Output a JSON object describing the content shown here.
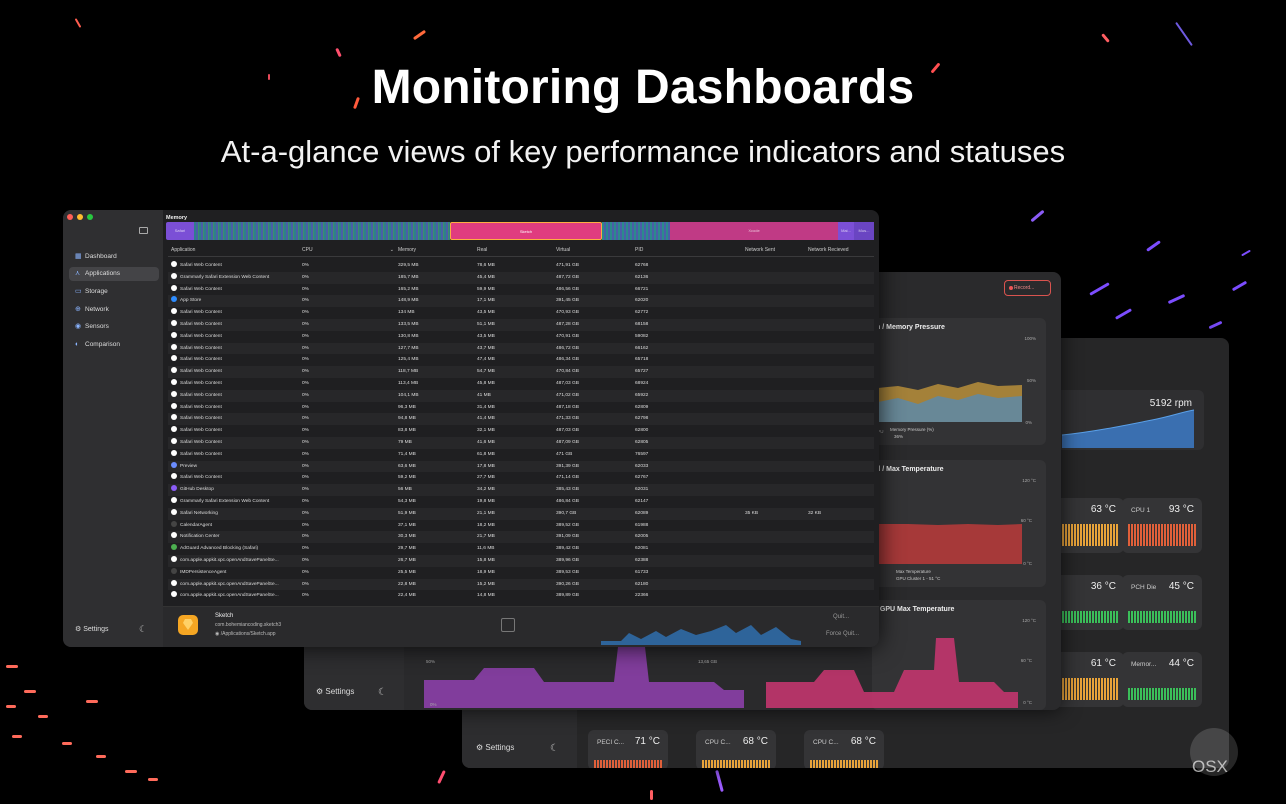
{
  "hero": {
    "title": "Monitoring Dashboards",
    "subtitle": "At-a-glance views of key performance indicators and statuses"
  },
  "colors": {
    "accent_pink": "#e83f7f",
    "accent_purple": "#8b3fd1",
    "accent_orange": "#ffae42",
    "fan_blue": "#3a6fb0"
  },
  "sidebar": {
    "items": [
      {
        "label": "Dashboard",
        "icon": "grid-icon"
      },
      {
        "label": "Applications",
        "icon": "apps-icon"
      },
      {
        "label": "Storage",
        "icon": "disk-icon"
      },
      {
        "label": "Network",
        "icon": "globe-icon"
      },
      {
        "label": "Sensors",
        "icon": "thermometer-icon"
      },
      {
        "label": "Comparison",
        "icon": "compare-icon"
      }
    ],
    "settings_label": "Settings"
  },
  "memory": {
    "label": "Memory",
    "segments": [
      {
        "label": "Safari",
        "color": "#7b4fd6"
      },
      {
        "label": "",
        "color": "#2f7f8c"
      },
      {
        "label": "Sketch",
        "color": "#e03c7f"
      },
      {
        "label": "",
        "color": "#2c8a8c"
      },
      {
        "label": "Xcode",
        "color": "#c03a85"
      },
      {
        "label": "Mai...",
        "color": "#7b4fd6"
      },
      {
        "label": "Mus...",
        "color": "#7b4fd6"
      }
    ]
  },
  "table": {
    "headers": [
      "Application",
      "CPU",
      "Memory",
      "Real",
      "Virtual",
      "PID",
      "Network Sent",
      "Network Recieved"
    ],
    "rows": [
      [
        "Safari Web Content",
        "0%",
        "329,5 MB",
        "78,6 MB",
        "471,91 GB",
        "62768",
        "",
        ""
      ],
      [
        "Grammarly Safari Extension Web Content",
        "0%",
        "185,7 MB",
        "45,4 MB",
        "487,72 GB",
        "62136",
        "",
        ""
      ],
      [
        "Safari Web Content",
        "0%",
        "165,2 MB",
        "59,9 MB",
        "486,56 GB",
        "66721",
        "",
        ""
      ],
      [
        "App Store",
        "0%",
        "148,9 MB",
        "17,1 MB",
        "391,45 GB",
        "62020",
        "",
        ""
      ],
      [
        "Safari Web Content",
        "0%",
        "134 MB",
        "43,5 MB",
        "470,93 GB",
        "62772",
        "",
        ""
      ],
      [
        "Safari Web Content",
        "0%",
        "133,5 MB",
        "51,1 MB",
        "487,28 GB",
        "68158",
        "",
        ""
      ],
      [
        "Safari Web Content",
        "0%",
        "130,8 MB",
        "43,5 MB",
        "470,91 GB",
        "59082",
        "",
        ""
      ],
      [
        "Safari Web Content",
        "0%",
        "127,7 MB",
        "43,7 MB",
        "486,72 GB",
        "66162",
        "",
        ""
      ],
      [
        "Safari Web Content",
        "0%",
        "125,4 MB",
        "47,4 MB",
        "486,34 GB",
        "65718",
        "",
        ""
      ],
      [
        "Safari Web Content",
        "0%",
        "118,7 MB",
        "54,7 MB",
        "470,84 GB",
        "65727",
        "",
        ""
      ],
      [
        "Safari Web Content",
        "0%",
        "113,4 MB",
        "45,8 MB",
        "487,03 GB",
        "68924",
        "",
        ""
      ],
      [
        "Safari Web Content",
        "0%",
        "104,1 MB",
        "41 MB",
        "471,02 GB",
        "65922",
        "",
        ""
      ],
      [
        "Safari Web Content",
        "0%",
        "96,3 MB",
        "31,4 MB",
        "487,18 GB",
        "62809",
        "",
        ""
      ],
      [
        "Safari Web Content",
        "0%",
        "94,8 MB",
        "41,4 MB",
        "471,33 GB",
        "62798",
        "",
        ""
      ],
      [
        "Safari Web Content",
        "0%",
        "83,8 MB",
        "32,1 MB",
        "487,03 GB",
        "62800",
        "",
        ""
      ],
      [
        "Safari Web Content",
        "0%",
        "79 MB",
        "41,6 MB",
        "487,09 GB",
        "62805",
        "",
        ""
      ],
      [
        "Safari Web Content",
        "0%",
        "71,4 MB",
        "61,8 MB",
        "471 GB",
        "76597",
        "",
        ""
      ],
      [
        "Preview",
        "0%",
        "63,6 MB",
        "17,8 MB",
        "391,39 GB",
        "62033",
        "",
        ""
      ],
      [
        "Safari Web Content",
        "0%",
        "59,2 MB",
        "27,7 MB",
        "471,14 GB",
        "62767",
        "",
        ""
      ],
      [
        "GitHub Desktop",
        "0%",
        "56 MB",
        "34,2 MB",
        "385,43 GB",
        "62031",
        "",
        ""
      ],
      [
        "Grammarly Safari Extension Web Content",
        "0%",
        "54,3 MB",
        "19,8 MB",
        "486,84 GB",
        "62147",
        "",
        ""
      ],
      [
        "Safari Networking",
        "0%",
        "51,9 MB",
        "21,1 MB",
        "390,7 GB",
        "62089",
        "35 KB",
        "32 KB"
      ],
      [
        "CalendarAgent",
        "0%",
        "37,1 MB",
        "18,2 MB",
        "389,52 GB",
        "61988",
        "",
        ""
      ],
      [
        "Notification Center",
        "0%",
        "30,3 MB",
        "21,7 MB",
        "391,09 GB",
        "62005",
        "",
        ""
      ],
      [
        "AdGuard Advanced Blocking (Safari)",
        "0%",
        "29,7 MB",
        "11,6 MB",
        "389,42 GB",
        "62081",
        "",
        ""
      ],
      [
        "com.apple.appkit.xpc.openAndSavePanelSe...",
        "0%",
        "26,7 MB",
        "15,8 MB",
        "389,96 GB",
        "62388",
        "",
        ""
      ],
      [
        "IMDPersistenceAgent",
        "0%",
        "25,5 MB",
        "18,9 MB",
        "389,53 GB",
        "61733",
        "",
        ""
      ],
      [
        "com.apple.appkit.xpc.openAndSavePanelSe...",
        "0%",
        "22,8 MB",
        "15,2 MB",
        "390,26 GB",
        "62180",
        "",
        ""
      ],
      [
        "com.apple.appkit.xpc.openAndSavePanelSe...",
        "0%",
        "22,4 MB",
        "14,8 MB",
        "389,89 GB",
        "22366",
        "",
        ""
      ]
    ]
  },
  "detail": {
    "name": "Sketch",
    "bundle": "com.bohemiancoding.sketch3",
    "path": "/Applications/Sketch.app",
    "quit_label": "Quit...",
    "force_quit_label": "Force Quit..."
  },
  "window2": {
    "record_label": "Record...",
    "panels": [
      {
        "title": "n / Memory Pressure",
        "legend": "Memory Pressure (%)",
        "legend_value": "36%",
        "legend_left": "CPU",
        "axis": [
          "100%",
          "50%",
          "0%"
        ]
      },
      {
        "title": "d / Max Temperature",
        "legend": "Max Temperature",
        "legend_sub": "GPU Cluster 1 - 51 °C",
        "legend_left": "e",
        "axis": [
          "120 °C",
          "60 °C",
          "0 °C"
        ]
      },
      {
        "title": "/ GPU Max Temperature",
        "axis": [
          "120 °C",
          "60 °C",
          "0 °C"
        ]
      }
    ],
    "left_chart_axis": [
      "50%",
      "0%"
    ],
    "left_chart_value": "13,65 GB"
  },
  "window3": {
    "fan_value": "5192 rpm",
    "sensors": [
      {
        "label": "",
        "value": "63 °C",
        "color": "#e8a33a"
      },
      {
        "label": "CPU 1",
        "value": "93 °C",
        "color": "#e0603a"
      },
      {
        "label": "",
        "value": "36 °C",
        "color": "#3bbf5a"
      },
      {
        "label": "PCH Die",
        "value": "45 °C",
        "color": "#3bbf5a"
      },
      {
        "label": "",
        "value": "61 °C",
        "color": "#e8a33a"
      },
      {
        "label": "Memor...",
        "value": "44 °C",
        "color": "#3bbf5a"
      },
      {
        "label": "PECI C...",
        "value": "71 °C",
        "color": "#e0603a"
      },
      {
        "label": "CPU C...",
        "value": "68 °C",
        "color": "#e8a33a"
      },
      {
        "label": "CPU C...",
        "value": "68 °C",
        "color": "#e8a33a"
      }
    ]
  },
  "watermark": {
    "text": "OSX"
  }
}
